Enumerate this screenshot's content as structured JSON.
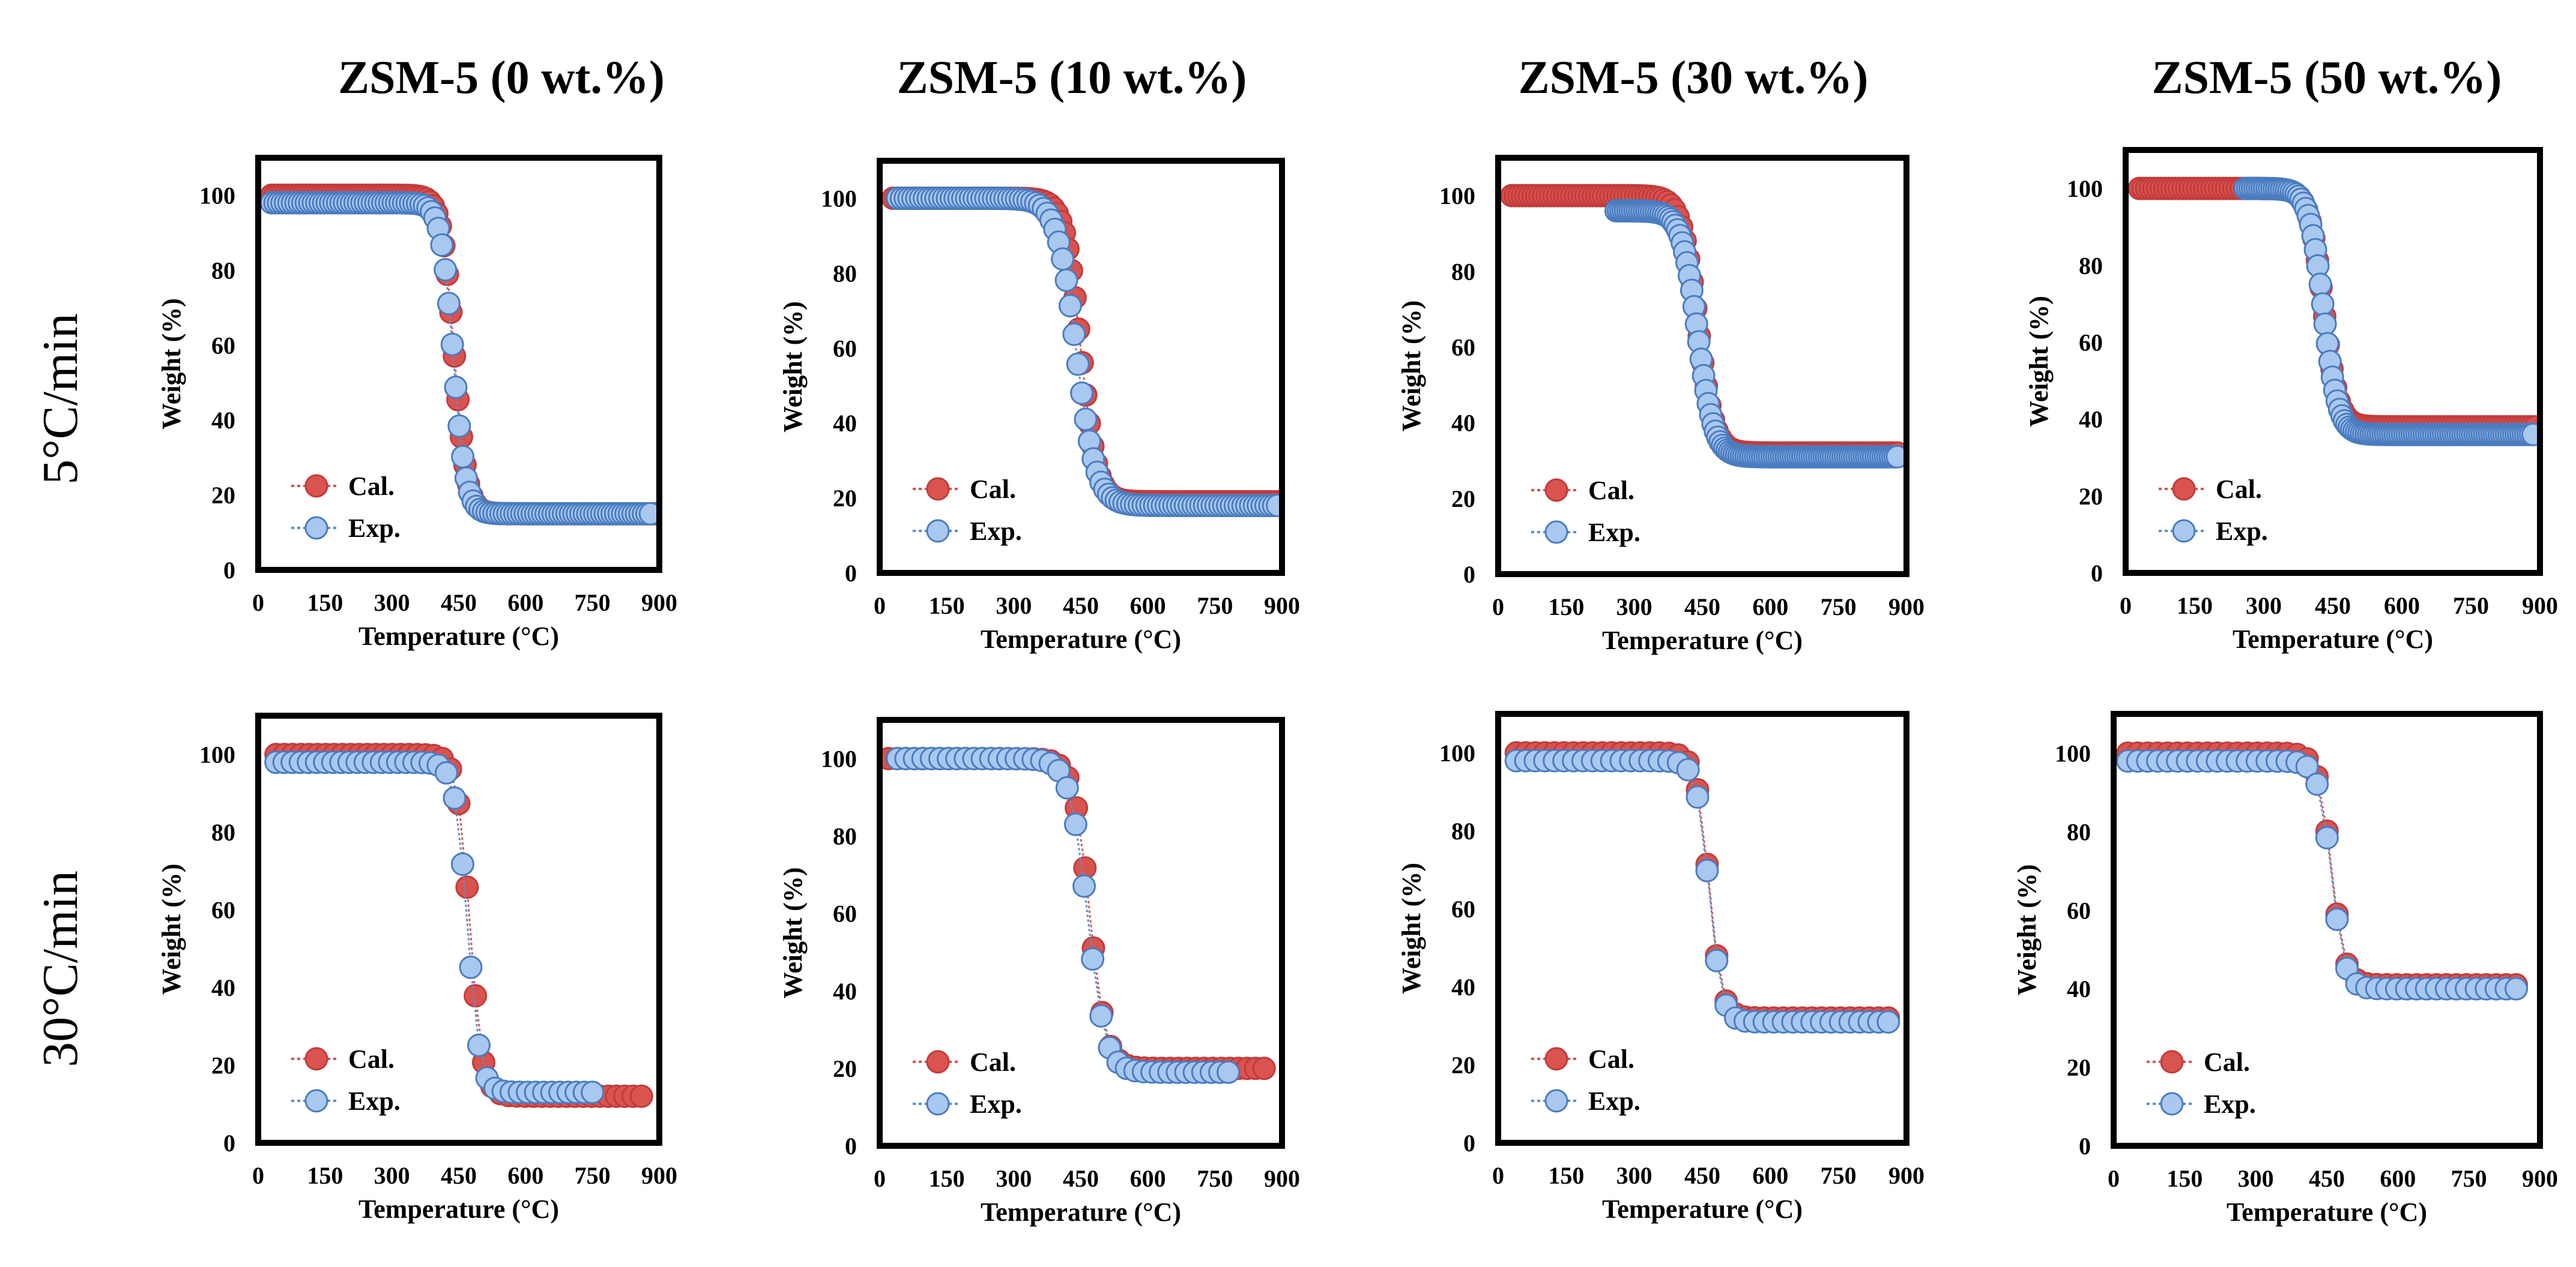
{
  "column_titles": [
    "ZSM-5 (0 wt.%)",
    "ZSM-5 (10 wt.%)",
    "ZSM-5 (30 wt.%)",
    "ZSM-5 (50 wt.%)"
  ],
  "row_labels": [
    "5°C/min",
    "30°C/min"
  ],
  "colors": {
    "cal": "#d9534f",
    "cal_edge": "#c23b3b",
    "exp": "#5b8fd0",
    "exp_fill": "#a9c8f0",
    "exp_edge": "#4a7cc0",
    "frame": "#000000"
  },
  "chart_data": [
    {
      "type": "scatter",
      "row": "5°C/min",
      "column": "ZSM-5 (0 wt.%)",
      "xlabel": "Temperature (°C)",
      "ylabel": "Weight (%)",
      "xlim": [
        0,
        900
      ],
      "ylim": [
        0,
        110
      ],
      "xticks": [
        "0",
        "150",
        "300",
        "450",
        "600",
        "750",
        "900"
      ],
      "yticks": [
        "0",
        "20",
        "40",
        "60",
        "80",
        "100"
      ],
      "legend": [
        "Cal.",
        "Exp."
      ],
      "series": [
        {
          "name": "Cal.",
          "t_onset": 440,
          "width": 14,
          "start_x": 30,
          "end_x": 890,
          "y_start": 100,
          "y_end": 15,
          "count": 110
        },
        {
          "name": "Exp.",
          "t_onset": 438,
          "width": 14,
          "start_x": 30,
          "end_x": 880,
          "y_start": 98,
          "y_end": 15,
          "count": 110
        }
      ]
    },
    {
      "type": "scatter",
      "row": "5°C/min",
      "column": "ZSM-5 (10 wt.%)",
      "xlabel": "Temperature (°C)",
      "ylabel": "Weight (%)",
      "xlim": [
        0,
        900
      ],
      "ylim": [
        0,
        110
      ],
      "xticks": [
        "0",
        "150",
        "300",
        "450",
        "600",
        "750",
        "900"
      ],
      "yticks": [
        "0",
        "20",
        "40",
        "60",
        "80",
        "100"
      ],
      "legend": [
        "Cal.",
        "Exp."
      ],
      "series": [
        {
          "name": "Cal.",
          "t_onset": 450,
          "width": 18,
          "start_x": 30,
          "end_x": 900,
          "y_start": 100,
          "y_end": 19,
          "count": 110
        },
        {
          "name": "Exp.",
          "t_onset": 440,
          "width": 22,
          "start_x": 40,
          "end_x": 890,
          "y_start": 100,
          "y_end": 18,
          "count": 100
        }
      ]
    },
    {
      "type": "scatter",
      "row": "5°C/min",
      "column": "ZSM-5 (30 wt.%)",
      "xlabel": "Temperature (°C)",
      "ylabel": "Weight (%)",
      "xlim": [
        0,
        900
      ],
      "ylim": [
        0,
        110
      ],
      "xticks": [
        "0",
        "150",
        "300",
        "450",
        "600",
        "750",
        "900"
      ],
      "yticks": [
        "0",
        "20",
        "40",
        "60",
        "80",
        "100"
      ],
      "legend": [
        "Cal.",
        "Exp."
      ],
      "series": [
        {
          "name": "Cal.",
          "t_onset": 440,
          "width": 18,
          "start_x": 30,
          "end_x": 880,
          "y_start": 100,
          "y_end": 32,
          "count": 110
        },
        {
          "name": "Exp.",
          "t_onset": 440,
          "width": 18,
          "start_x": 260,
          "end_x": 880,
          "y_start": 96,
          "y_end": 31,
          "count": 120
        }
      ]
    },
    {
      "type": "scatter",
      "row": "5°C/min",
      "column": "ZSM-5 (50 wt.%)",
      "xlabel": "Temperature (°C)",
      "ylabel": "Weight (%)",
      "xlim": [
        0,
        900
      ],
      "ylim": [
        0,
        110
      ],
      "xticks": [
        "0",
        "150",
        "300",
        "450",
        "600",
        "750",
        "900"
      ],
      "yticks": [
        "0",
        "20",
        "40",
        "60",
        "80",
        "100"
      ],
      "legend": [
        "Cal.",
        "Exp."
      ],
      "series": [
        {
          "name": "Cal.",
          "t_onset": 430,
          "width": 16,
          "start_x": 30,
          "end_x": 890,
          "y_start": 100,
          "y_end": 38,
          "count": 110
        },
        {
          "name": "Exp.",
          "t_onset": 430,
          "width": 16,
          "start_x": 260,
          "end_x": 885,
          "y_start": 100,
          "y_end": 36,
          "count": 120
        }
      ]
    },
    {
      "type": "scatter",
      "row": "30°C/min",
      "column": "ZSM-5 (0 wt.%)",
      "xlabel": "Temperature (°C)",
      "ylabel": "Weight (%)",
      "xlim": [
        0,
        900
      ],
      "ylim": [
        0,
        110
      ],
      "xticks": [
        "0",
        "150",
        "300",
        "450",
        "600",
        "750",
        "900"
      ],
      "yticks": [
        "0",
        "20",
        "40",
        "60",
        "80",
        "100"
      ],
      "legend": [
        "Cal.",
        "Exp."
      ],
      "series": [
        {
          "name": "Cal.",
          "t_onset": 475,
          "width": 14,
          "start_x": 40,
          "end_x": 860,
          "y_start": 100,
          "y_end": 12,
          "count": 45
        },
        {
          "name": "Exp.",
          "t_onset": 470,
          "width": 14,
          "start_x": 40,
          "end_x": 750,
          "y_start": 98,
          "y_end": 13,
          "count": 40
        }
      ]
    },
    {
      "type": "scatter",
      "row": "30°C/min",
      "column": "ZSM-5 (10 wt.%)",
      "xlabel": "Temperature (°C)",
      "ylabel": "Weight (%)",
      "xlim": [
        0,
        900
      ],
      "ylim": [
        0,
        110
      ],
      "xticks": [
        "0",
        "150",
        "300",
        "450",
        "600",
        "750",
        "900"
      ],
      "yticks": [
        "0",
        "20",
        "40",
        "60",
        "80",
        "100"
      ],
      "legend": [
        "Cal.",
        "Exp."
      ],
      "series": [
        {
          "name": "Cal.",
          "t_onset": 470,
          "width": 18,
          "start_x": 20,
          "end_x": 860,
          "y_start": 100,
          "y_end": 20,
          "count": 45
        },
        {
          "name": "Exp.",
          "t_onset": 465,
          "width": 20,
          "start_x": 40,
          "end_x": 780,
          "y_start": 100,
          "y_end": 19,
          "count": 40
        }
      ]
    },
    {
      "type": "scatter",
      "row": "30°C/min",
      "column": "ZSM-5 (30 wt.%)",
      "xlabel": "Temperature (°C)",
      "ylabel": "Weight (%)",
      "xlim": [
        0,
        900
      ],
      "ylim": [
        0,
        110
      ],
      "xticks": [
        "0",
        "150",
        "300",
        "450",
        "600",
        "750",
        "900"
      ],
      "yticks": [
        "0",
        "20",
        "40",
        "60",
        "80",
        "100"
      ],
      "legend": [
        "Cal.",
        "Exp."
      ],
      "series": [
        {
          "name": "Cal.",
          "t_onset": 465,
          "width": 14,
          "start_x": 40,
          "end_x": 860,
          "y_start": 100,
          "y_end": 32,
          "count": 40
        },
        {
          "name": "Exp.",
          "t_onset": 465,
          "width": 14,
          "start_x": 40,
          "end_x": 860,
          "y_start": 98,
          "y_end": 31,
          "count": 40
        }
      ]
    },
    {
      "type": "scatter",
      "row": "30°C/min",
      "column": "ZSM-5 (50 wt.%)",
      "xlabel": "Temperature (°C)",
      "ylabel": "Weight (%)",
      "xlim": [
        0,
        900
      ],
      "ylim": [
        0,
        110
      ],
      "xticks": [
        "0",
        "150",
        "300",
        "450",
        "600",
        "750",
        "900"
      ],
      "yticks": [
        "0",
        "20",
        "40",
        "60",
        "80",
        "100"
      ],
      "legend": [
        "Cal.",
        "Exp."
      ],
      "series": [
        {
          "name": "Cal.",
          "t_onset": 460,
          "width": 14,
          "start_x": 30,
          "end_x": 850,
          "y_start": 100,
          "y_end": 41,
          "count": 40
        },
        {
          "name": "Exp.",
          "t_onset": 460,
          "width": 14,
          "start_x": 30,
          "end_x": 850,
          "y_start": 98,
          "y_end": 40,
          "count": 40
        }
      ]
    }
  ]
}
